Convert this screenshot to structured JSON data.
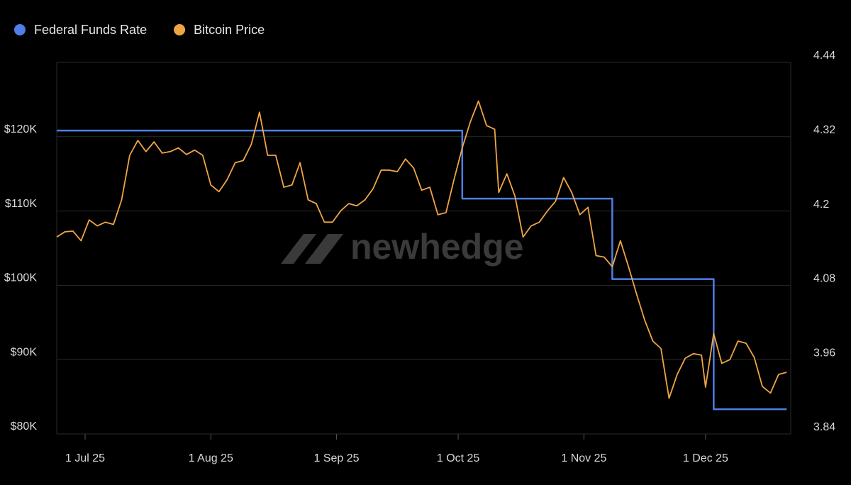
{
  "chart_data": {
    "type": "line",
    "watermark": "newhedge",
    "x": [
      "2025-06-24",
      "2025-06-26",
      "2025-06-28",
      "2025-06-30",
      "2025-07-02",
      "2025-07-04",
      "2025-07-06",
      "2025-07-08",
      "2025-07-10",
      "2025-07-12",
      "2025-07-14",
      "2025-07-16",
      "2025-07-18",
      "2025-07-20",
      "2025-07-22",
      "2025-07-24",
      "2025-07-26",
      "2025-07-28",
      "2025-07-30",
      "2025-08-01",
      "2025-08-03",
      "2025-08-05",
      "2025-08-07",
      "2025-08-09",
      "2025-08-11",
      "2025-08-13",
      "2025-08-15",
      "2025-08-17",
      "2025-08-19",
      "2025-08-21",
      "2025-08-23",
      "2025-08-25",
      "2025-08-27",
      "2025-08-29",
      "2025-08-31",
      "2025-09-02",
      "2025-09-04",
      "2025-09-06",
      "2025-09-08",
      "2025-09-10",
      "2025-09-12",
      "2025-09-14",
      "2025-09-16",
      "2025-09-18",
      "2025-09-20",
      "2025-09-22",
      "2025-09-24",
      "2025-09-26",
      "2025-09-28",
      "2025-09-30",
      "2025-10-02",
      "2025-10-04",
      "2025-10-06",
      "2025-10-08",
      "2025-10-10",
      "2025-10-11",
      "2025-10-13",
      "2025-10-15",
      "2025-10-17",
      "2025-10-19",
      "2025-10-21",
      "2025-10-23",
      "2025-10-25",
      "2025-10-27",
      "2025-10-29",
      "2025-10-31",
      "2025-11-02",
      "2025-11-04",
      "2025-11-06",
      "2025-11-08",
      "2025-11-10",
      "2025-11-12",
      "2025-11-14",
      "2025-11-16",
      "2025-11-18",
      "2025-11-20",
      "2025-11-22",
      "2025-11-24",
      "2025-11-26",
      "2025-11-28",
      "2025-11-30",
      "2025-12-01",
      "2025-12-03",
      "2025-12-05",
      "2025-12-07",
      "2025-12-09",
      "2025-12-11",
      "2025-12-13",
      "2025-12-15",
      "2025-12-17",
      "2025-12-19",
      "2025-12-21"
    ],
    "xlim": [
      "2025-06-24",
      "2025-12-22"
    ],
    "xticks": [
      {
        "value": "2025-07-01",
        "label": "1 Jul 25"
      },
      {
        "value": "2025-08-01",
        "label": "1 Aug 25"
      },
      {
        "value": "2025-09-01",
        "label": "1 Sep 25"
      },
      {
        "value": "2025-10-01",
        "label": "1 Oct 25"
      },
      {
        "value": "2025-11-01",
        "label": "1 Nov 25"
      },
      {
        "value": "2025-12-01",
        "label": "1 Dec 25"
      }
    ],
    "ylim": [
      80000,
      130000
    ],
    "yticks": [
      {
        "value": 80000,
        "label": "$80K"
      },
      {
        "value": 90000,
        "label": "$90K"
      },
      {
        "value": 100000,
        "label": "$100K"
      },
      {
        "value": 110000,
        "label": "$110K"
      },
      {
        "value": 120000,
        "label": "$120K"
      }
    ],
    "y2lim": [
      3.84,
      4.44
    ],
    "y2ticks": [
      3.84,
      3.96,
      4.08,
      4.2,
      4.32,
      4.44
    ],
    "grid": true,
    "legend": "top-left",
    "series": [
      {
        "name": "Federal Funds Rate",
        "color": "#4f7fe6",
        "axis": "y2",
        "step": "after",
        "values": [
          4.33,
          4.33,
          4.33,
          4.33,
          4.33,
          4.33,
          4.33,
          4.33,
          4.33,
          4.33,
          4.33,
          4.33,
          4.33,
          4.33,
          4.33,
          4.33,
          4.33,
          4.33,
          4.33,
          4.33,
          4.33,
          4.33,
          4.33,
          4.33,
          4.33,
          4.33,
          4.33,
          4.33,
          4.33,
          4.33,
          4.33,
          4.33,
          4.33,
          4.33,
          4.33,
          4.33,
          4.33,
          4.33,
          4.33,
          4.33,
          4.33,
          4.33,
          4.33,
          4.33,
          4.33,
          4.33,
          4.33,
          4.33,
          4.33,
          4.33,
          4.22,
          4.22,
          4.22,
          4.22,
          4.22,
          4.22,
          4.22,
          4.22,
          4.22,
          4.22,
          4.22,
          4.22,
          4.22,
          4.22,
          4.22,
          4.22,
          4.22,
          4.22,
          4.22,
          4.09,
          4.09,
          4.09,
          4.09,
          4.09,
          4.09,
          4.09,
          4.09,
          4.09,
          4.09,
          4.09,
          4.09,
          4.09,
          3.88,
          3.88,
          3.88,
          3.88,
          3.88,
          3.88,
          3.88,
          3.88,
          3.88,
          3.88
        ]
      },
      {
        "name": "Bitcoin Price",
        "color": "#f0a545",
        "values": [
          106500,
          107200,
          107300,
          106000,
          108800,
          108000,
          108500,
          108200,
          111500,
          117500,
          119500,
          118000,
          119300,
          117800,
          118000,
          118500,
          117600,
          118200,
          117500,
          113500,
          112600,
          114200,
          116500,
          116800,
          119000,
          123300,
          117500,
          117500,
          113200,
          113500,
          116500,
          111500,
          111000,
          108500,
          108500,
          110000,
          111000,
          110700,
          111500,
          113000,
          115500,
          115500,
          115300,
          117000,
          115800,
          112800,
          113200,
          109500,
          109800,
          114300,
          118500,
          122000,
          124800,
          121500,
          121000,
          112500,
          115000,
          112000,
          106500,
          108000,
          108500,
          110000,
          111300,
          114500,
          112500,
          109500,
          110500,
          104000,
          103800,
          102500,
          106000,
          102500,
          98800,
          95300,
          92500,
          91500,
          84800,
          88000,
          90200,
          90800,
          90600,
          86300,
          93500,
          89500,
          90000,
          92500,
          92200,
          90300,
          86400,
          85500,
          88000,
          88300
        ]
      }
    ]
  }
}
